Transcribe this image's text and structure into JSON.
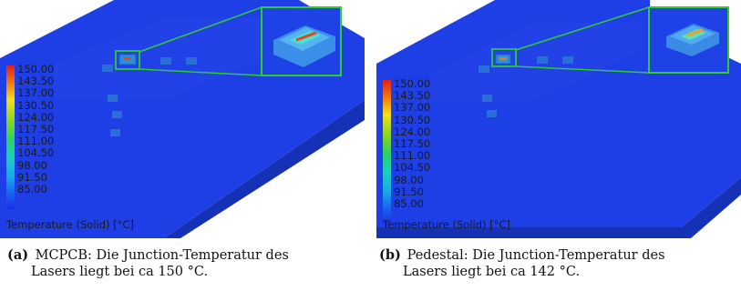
{
  "figure_a": {
    "caption_label": "(a)",
    "caption_line1": "MCPCB: Die Junction-Temperatur des",
    "caption_line2": "Lasers liegt bei ca 150 °C.",
    "scale_ticks": [
      "150.00",
      "143.50",
      "137.00",
      "130.50",
      "124.00",
      "117.50",
      "111.00",
      "104.50",
      "98.00",
      "91.50",
      "85.00"
    ],
    "legend_title": "Temperature (Solid) [°C]"
  },
  "figure_b": {
    "caption_label": "(b)",
    "caption_line1": "Pedestal: Die Junction-Temperatur des",
    "caption_line2": "Lasers liegt bei ca 142 °C.",
    "scale_ticks": [
      "150.00",
      "143.50",
      "137.00",
      "130.50",
      "124.00",
      "117.50",
      "111.00",
      "104.50",
      "98.00",
      "91.50",
      "85.00"
    ],
    "legend_title": "Temperature (Solid) [°C]"
  },
  "colors": {
    "board_top": "#1f3fe6",
    "board_side": "#1531b5",
    "zoom_frame": "#2ecc2e",
    "hotspot": "#e8431a"
  }
}
